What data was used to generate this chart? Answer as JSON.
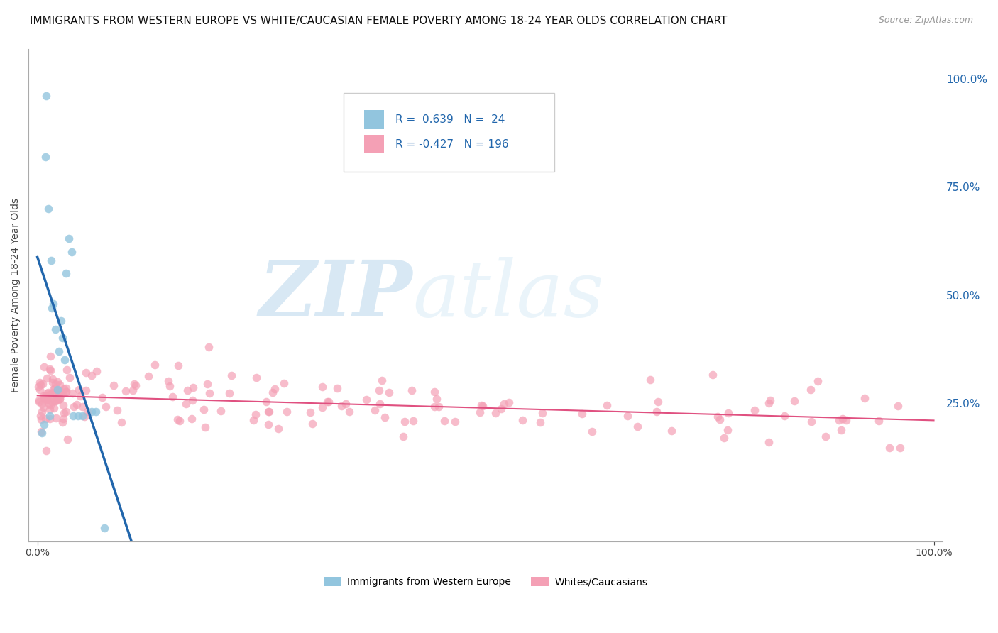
{
  "title": "IMMIGRANTS FROM WESTERN EUROPE VS WHITE/CAUCASIAN FEMALE POVERTY AMONG 18-24 YEAR OLDS CORRELATION CHART",
  "source": "Source: ZipAtlas.com",
  "ylabel": "Female Poverty Among 18-24 Year Olds",
  "legend_labels": [
    "Immigrants from Western Europe",
    "Whites/Caucasians"
  ],
  "r_blue": 0.639,
  "n_blue": 24,
  "r_pink": -0.427,
  "n_pink": 196,
  "blue_color": "#92c5de",
  "pink_color": "#f4a0b5",
  "blue_line_color": "#2166ac",
  "pink_line_color": "#e05080",
  "watermark_zip": "ZIP",
  "watermark_atlas": "atlas",
  "xlim": [
    0.0,
    1.0
  ],
  "ylim": [
    -0.05,
    1.05
  ],
  "right_ytick_vals": [
    0.25,
    0.5,
    0.75,
    1.0
  ],
  "right_yticklabels": [
    "25.0%",
    "50.0%",
    "75.0%",
    "100.0%"
  ],
  "background_color": "#ffffff",
  "grid_color": "#cccccc",
  "title_fontsize": 11,
  "axis_label_fontsize": 10,
  "tick_fontsize": 10,
  "blue_scatter_x": [
    0.005,
    0.007,
    0.009,
    0.01,
    0.012,
    0.014,
    0.015,
    0.016,
    0.018,
    0.02,
    0.022,
    0.024,
    0.026,
    0.028,
    0.03,
    0.032,
    0.035,
    0.038,
    0.04,
    0.045,
    0.05,
    0.06,
    0.065,
    0.075
  ],
  "blue_scatter_y": [
    0.18,
    0.2,
    0.82,
    0.96,
    0.7,
    0.22,
    0.58,
    0.47,
    0.48,
    0.42,
    0.28,
    0.37,
    0.44,
    0.4,
    0.35,
    0.55,
    0.63,
    0.6,
    0.22,
    0.22,
    0.22,
    0.23,
    0.23,
    -0.04
  ]
}
